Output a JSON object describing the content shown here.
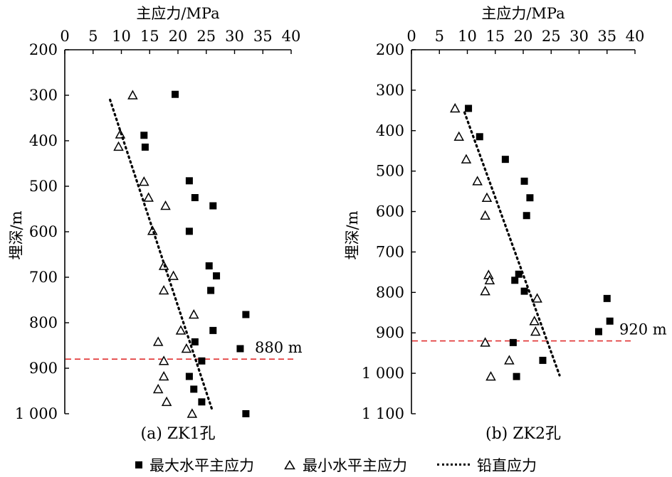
{
  "chart_data": [
    {
      "type": "scatter",
      "panel_label": "(a) ZK1孔",
      "xlabel": "主应力/MPa",
      "ylabel": "埋深/m",
      "xlim": [
        0,
        40
      ],
      "ylim": [
        200,
        1000
      ],
      "y_inverted": true,
      "x_axis_position": "top",
      "x_ticks": [
        "0",
        "5",
        "10",
        "15",
        "20",
        "25",
        "30",
        "35",
        "40"
      ],
      "y_ticks": [
        "200",
        "300",
        "400",
        "500",
        "600",
        "700",
        "800",
        "900",
        "1 000"
      ],
      "grid": false,
      "series": [
        {
          "name": "最大水平主应力",
          "marker": "square",
          "points": [
            [
              19.5,
              298
            ],
            [
              14,
              388
            ],
            [
              14.2,
              414
            ],
            [
              22,
              488
            ],
            [
              23,
              525
            ],
            [
              26.2,
              543
            ],
            [
              22,
              599
            ],
            [
              25.5,
              675
            ],
            [
              26.8,
              697
            ],
            [
              25.8,
              729
            ],
            [
              32,
              782
            ],
            [
              26.2,
              817
            ],
            [
              31,
              857
            ],
            [
              23,
              842
            ],
            [
              24.2,
              884
            ],
            [
              22,
              918
            ],
            [
              22.8,
              946
            ],
            [
              24.2,
              974
            ],
            [
              32,
              1000
            ]
          ]
        },
        {
          "name": "最小水平主应力",
          "marker": "triangle-open",
          "points": [
            [
              12,
              300
            ],
            [
              9.8,
              386
            ],
            [
              9.5,
              413
            ],
            [
              14,
              490
            ],
            [
              14.8,
              525
            ],
            [
              17.8,
              543
            ],
            [
              15.5,
              598
            ],
            [
              17.5,
              675
            ],
            [
              19.2,
              697
            ],
            [
              17.5,
              729
            ],
            [
              22.8,
              782
            ],
            [
              20.5,
              817
            ],
            [
              21.5,
              857
            ],
            [
              16.5,
              842
            ],
            [
              17.5,
              884
            ],
            [
              17.5,
              918
            ],
            [
              16.5,
              946
            ],
            [
              18,
              974
            ],
            [
              22.5,
              1000
            ]
          ]
        },
        {
          "name": "铅直应力",
          "style": "dotted-line",
          "points": [
            [
              8,
              310
            ],
            [
              26,
              990
            ]
          ]
        }
      ],
      "annotations": [
        {
          "text": "880 m",
          "type": "hline",
          "y": 880,
          "color": "#e03030"
        }
      ]
    },
    {
      "type": "scatter",
      "panel_label": "(b) ZK2孔",
      "xlabel": "主应力/MPa",
      "ylabel": "埋深/m",
      "xlim": [
        0,
        40
      ],
      "ylim": [
        200,
        1100
      ],
      "y_inverted": true,
      "x_axis_position": "top",
      "x_ticks": [
        "0",
        "5",
        "10",
        "15",
        "20",
        "25",
        "30",
        "35",
        "40"
      ],
      "y_ticks": [
        "200",
        "300",
        "400",
        "500",
        "600",
        "700",
        "800",
        "900",
        "1 000",
        "1 100"
      ],
      "grid": false,
      "series": [
        {
          "name": "最大水平主应力",
          "marker": "square",
          "points": [
            [
              10.2,
              345
            ],
            [
              12.2,
              415
            ],
            [
              16.8,
              471
            ],
            [
              20.2,
              525
            ],
            [
              21.2,
              566
            ],
            [
              20.6,
              610
            ],
            [
              19.2,
              755
            ],
            [
              18.5,
              770
            ],
            [
              20.2,
              797
            ],
            [
              35,
              815
            ],
            [
              35.5,
              871
            ],
            [
              33.5,
              897
            ],
            [
              18.2,
              924
            ],
            [
              23.5,
              968
            ],
            [
              18.8,
              1008
            ]
          ]
        },
        {
          "name": "最小水平主应力",
          "marker": "triangle-open",
          "points": [
            [
              7.8,
              345
            ],
            [
              8.5,
              415
            ],
            [
              9.8,
              471
            ],
            [
              11.8,
              525
            ],
            [
              13.5,
              566
            ],
            [
              13.2,
              610
            ],
            [
              13.8,
              757
            ],
            [
              14,
              770
            ],
            [
              13.2,
              797
            ],
            [
              22.5,
              815
            ],
            [
              22,
              871
            ],
            [
              22.2,
              897
            ],
            [
              13.2,
              924
            ],
            [
              17.5,
              968
            ],
            [
              14.2,
              1008
            ]
          ]
        },
        {
          "name": "铅直应力",
          "style": "dotted-line",
          "points": [
            [
              9.5,
              355
            ],
            [
              26.5,
              1005
            ]
          ]
        }
      ],
      "annotations": [
        {
          "text": "920 m",
          "type": "hline",
          "y": 920,
          "color": "#e03030"
        }
      ]
    }
  ],
  "legend": {
    "items": [
      {
        "label": "最大水平主应力",
        "symbol": "filled-square"
      },
      {
        "label": "最小水平主应力",
        "symbol": "open-triangle"
      },
      {
        "label": "铅直应力",
        "symbol": "dotted-line"
      }
    ]
  }
}
